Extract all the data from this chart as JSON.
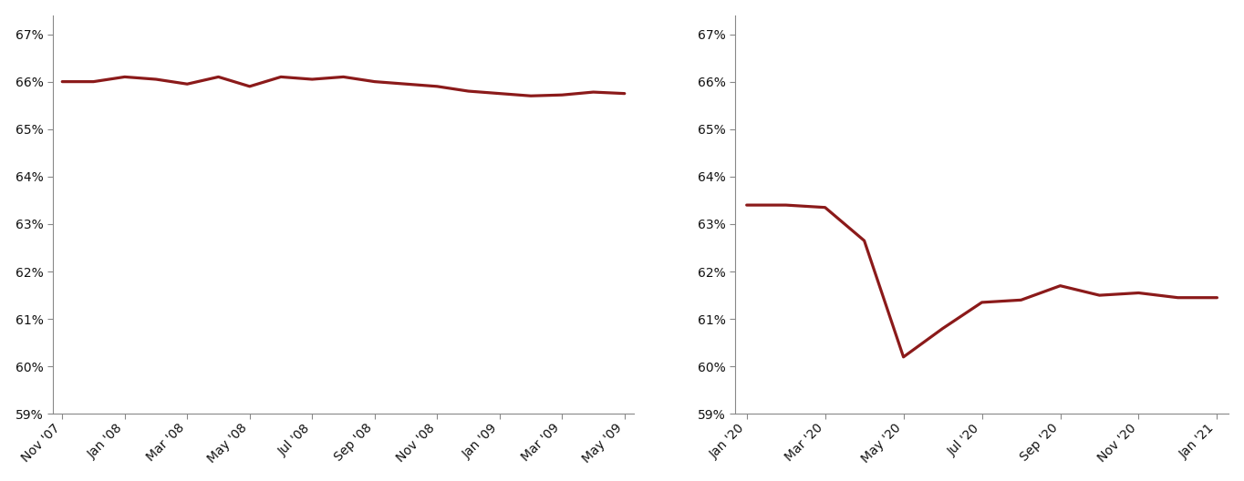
{
  "left_y": [
    66.0,
    66.0,
    66.1,
    66.05,
    65.95,
    66.1,
    65.9,
    66.1,
    66.05,
    66.1,
    66.0,
    65.95,
    65.9,
    65.8,
    65.75,
    65.7,
    65.72,
    65.78,
    65.75
  ],
  "left_tick_pos": [
    0,
    2,
    4,
    6,
    8,
    10,
    12,
    14,
    16,
    18
  ],
  "left_tick_labels": [
    "Nov '07",
    "Jan '08",
    "Mar '08",
    "May '08",
    "Jul '08",
    "Sep '08",
    "Nov '08",
    "Jan '09",
    "Mar '09",
    "May '09"
  ],
  "right_y": [
    63.4,
    63.4,
    63.35,
    62.65,
    60.2,
    60.8,
    61.35,
    61.4,
    61.7,
    61.5,
    61.55,
    61.45,
    61.45
  ],
  "right_tick_pos": [
    0,
    2,
    4,
    6,
    8,
    10,
    12
  ],
  "right_tick_labels": [
    "Jan '20",
    "Mar '20",
    "May '20",
    "Jul '20",
    "Sep '20",
    "Nov '20",
    "Jan '21"
  ],
  "ylim": [
    59,
    67.4
  ],
  "yticks": [
    59,
    60,
    61,
    62,
    63,
    64,
    65,
    66,
    67
  ],
  "line_color": "#8b1a1a",
  "line_width": 2.3,
  "background_color": "#ffffff",
  "tick_label_color": "#111111",
  "tick_label_fontsize": 10,
  "axis_color": "#888888",
  "tick_color": "#888888"
}
